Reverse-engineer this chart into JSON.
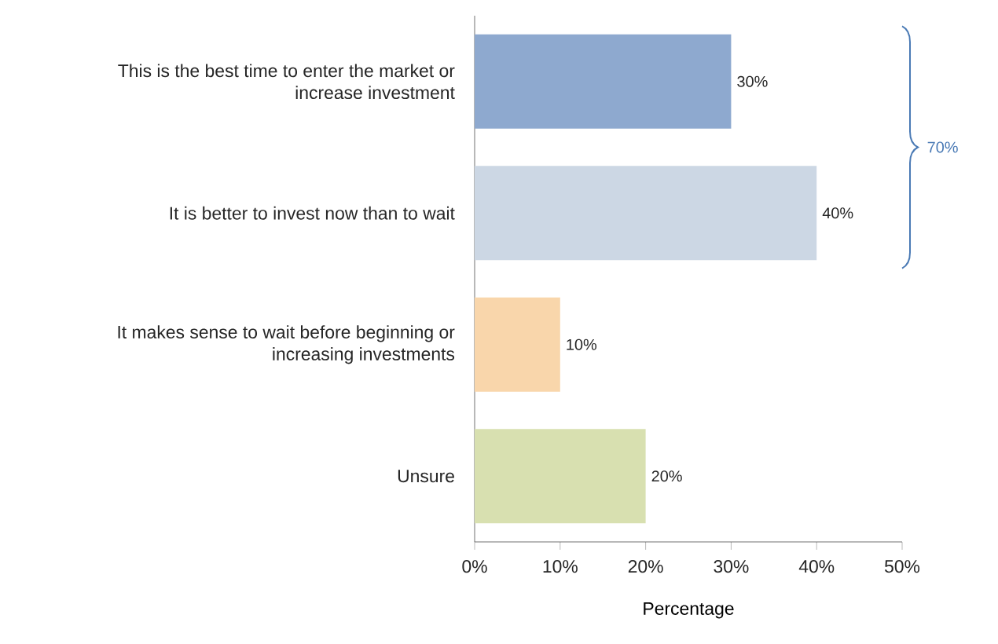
{
  "chart_data": {
    "type": "bar",
    "orientation": "horizontal",
    "xlabel": "Percentage",
    "categories": [
      "This is the best time to enter the market or increase investment",
      "It is better to invest now than to wait",
      "It makes sense to wait before beginning or increasing investments",
      "Unsure"
    ],
    "values": [
      30,
      40,
      10,
      20
    ],
    "colors": [
      "#8ea9cf",
      "#ccd7e4",
      "#f9d6ab",
      "#d8e0b0"
    ],
    "value_labels": [
      "30%",
      "40%",
      "10%",
      "20%"
    ],
    "xlim": [
      0,
      50
    ],
    "xticks": [
      {
        "value": 0,
        "label": "0%"
      },
      {
        "value": 10,
        "label": "10%"
      },
      {
        "value": 20,
        "label": "20%"
      },
      {
        "value": 30,
        "label": "30%"
      },
      {
        "value": 40,
        "label": "40%"
      },
      {
        "value": 50,
        "label": "50%"
      }
    ],
    "annotations": [
      "70%"
    ],
    "grid": false
  }
}
